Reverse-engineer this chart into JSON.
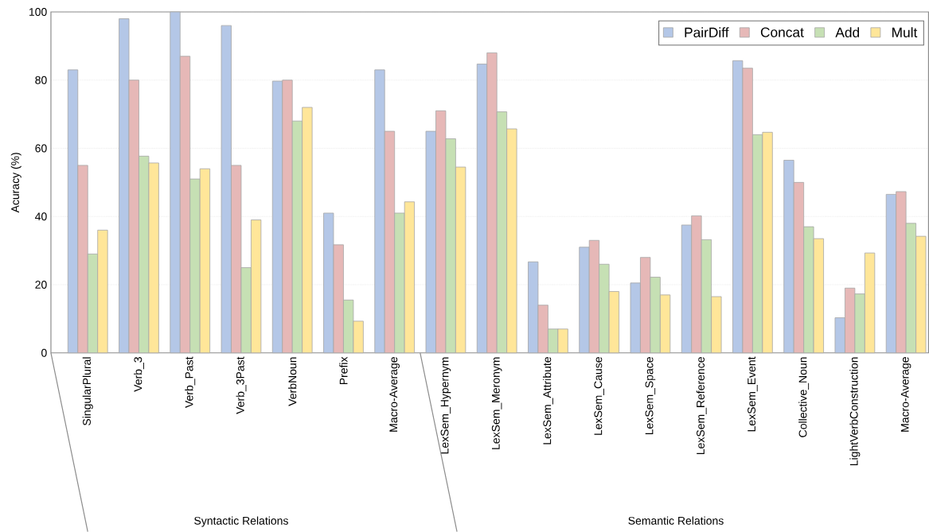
{
  "chart_data": {
    "type": "bar",
    "ylabel": "Acuracy (%)",
    "categories": [
      "SingularPlural",
      "Verb_3",
      "Verb_Past",
      "Verb_3Past",
      "VerbNoun",
      "Prefix",
      "Macro-Average",
      "LexSem_Hypernym",
      "LexSem_Meronym",
      "LexSem_Attribute",
      "LexSem_Cause",
      "LexSem_Space",
      "LexSem_Reference",
      "LexSem_Event",
      "Collective_Noun",
      "LightVerbConstruction",
      "Macro-Average"
    ],
    "series": [
      {
        "name": "PairDiff",
        "color": "#b4c7e7",
        "values": [
          83,
          98,
          100,
          96,
          79.7,
          41,
          83,
          65,
          84.7,
          26.7,
          31,
          20.5,
          37.5,
          85.7,
          56.5,
          10.3,
          46.5
        ]
      },
      {
        "name": "Concat",
        "color": "#e6b8b7",
        "values": [
          55,
          80,
          87,
          55,
          80,
          31.7,
          65,
          71,
          88,
          14,
          33,
          28,
          40.2,
          83.5,
          50,
          19,
          47.3
        ]
      },
      {
        "name": "Add",
        "color": "#c6e0b4",
        "values": [
          29,
          57.7,
          51,
          25,
          68,
          15.5,
          41,
          62.8,
          70.7,
          7,
          26,
          22.2,
          33.2,
          64,
          37,
          17.3,
          38
        ]
      },
      {
        "name": "Mult",
        "color": "#ffe699",
        "values": [
          36,
          55.7,
          54,
          39,
          72,
          9.3,
          44.3,
          54.5,
          65.7,
          7,
          18,
          17,
          16.5,
          64.7,
          33.5,
          29.3,
          34.2
        ]
      }
    ],
    "ylim": [
      0,
      100
    ],
    "yticks": [
      0,
      20,
      40,
      60,
      80,
      100
    ],
    "grid": "y",
    "legend": "top right",
    "annotations": [
      "Syntactic Relations",
      "Semantic Relations"
    ]
  }
}
